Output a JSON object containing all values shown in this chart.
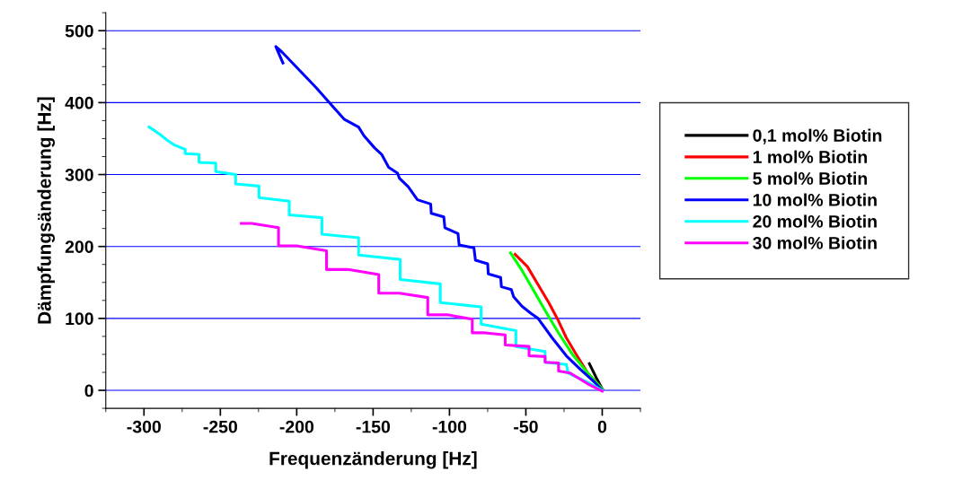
{
  "chart_data": {
    "type": "line",
    "xlabel": "Frequenzänderung [Hz]",
    "ylabel": "Dämpfungsänderung [Hz]",
    "xlim": [
      -325,
      25
    ],
    "xticks": [
      -300,
      -250,
      -200,
      -150,
      -100,
      -50,
      0
    ],
    "ylim": [
      -25,
      525
    ],
    "yticks": [
      0,
      100,
      200,
      300,
      400,
      500
    ],
    "grid": "y",
    "legend": "right",
    "marker": "none",
    "line_style": "solid",
    "series": [
      {
        "name": "0,1 mol% Biotin",
        "color": "#000000",
        "x": [
          -8.4,
          -4,
          0
        ],
        "values": [
          37,
          18,
          2
        ]
      },
      {
        "name": "1 mol% Biotin",
        "color": "#ff0000",
        "x": [
          -57,
          -49,
          -42,
          -35,
          -29,
          -23.5,
          -16.5,
          -9.5,
          0
        ],
        "values": [
          189,
          172,
          147,
          122,
          98,
          73,
          48,
          24,
          2
        ]
      },
      {
        "name": "5 mol% Biotin",
        "color": "#00ff00",
        "x": [
          -60,
          -52.6,
          -44.4,
          -36.3,
          -28.1,
          -18.8,
          -9.5,
          0
        ],
        "values": [
          191,
          167,
          137,
          107,
          78,
          48,
          24,
          2
        ]
      },
      {
        "name": "10 mol% Biotin",
        "color": "#0000ff",
        "x": [
          -209,
          -213.7,
          -209.5,
          -187.4,
          -177,
          -169,
          -159.5,
          -156,
          -149,
          -144.4,
          -139.8,
          -134,
          -132.8,
          -127,
          -121,
          -112.3,
          -111.9,
          -103.7,
          -103,
          -94.4,
          -93.7,
          -84,
          -83,
          -75,
          -74.6,
          -66.5,
          -66,
          -59.5,
          -58,
          -52.6,
          -46.7,
          -42,
          -32.8,
          -23.5,
          -14.2,
          -4.9,
          0
        ],
        "values": [
          455,
          478,
          470,
          421,
          396,
          377,
          366,
          354,
          337,
          328,
          310,
          302,
          295,
          283,
          265,
          259,
          246,
          241,
          226,
          218,
          202,
          198,
          181,
          176,
          162,
          157,
          144,
          140,
          130,
          117,
          107,
          100,
          73,
          48,
          29,
          11,
          0
        ]
      },
      {
        "name": "20 mol% Biotin",
        "color": "#00ffff",
        "x": [
          -296.7,
          -293,
          -289,
          -285,
          -280,
          -273,
          -273,
          -264,
          -264,
          -253,
          -253,
          -240,
          -240,
          -224.7,
          -224.7,
          -204.9,
          -204.9,
          -183.5,
          -183.5,
          -159.5,
          -159.5,
          -132.3,
          -132.3,
          -106,
          -106,
          -79.3,
          -79.3,
          -56.5,
          -56.5,
          -37.4,
          -37.4,
          -23.5,
          -22.3,
          -9.5,
          0
        ],
        "values": [
          366,
          361,
          355,
          348,
          341,
          335,
          329,
          328,
          317,
          316,
          304,
          300,
          287,
          284,
          268,
          263,
          244,
          240,
          217,
          212,
          188,
          182,
          154,
          148,
          122,
          116,
          92,
          83,
          61,
          54,
          39,
          36,
          24,
          11,
          0
        ]
      },
      {
        "name": "30 mol% Biotin",
        "color": "#ff00ff",
        "x": [
          -236.3,
          -229.3,
          -211.9,
          -211.9,
          -200,
          -180.5,
          -180.5,
          -166.5,
          -146.3,
          -146.3,
          -132.8,
          -114.2,
          -114.2,
          -101.4,
          -85.1,
          -85.1,
          -77,
          -63.5,
          -63.5,
          -47.9,
          -47.9,
          -37.4,
          -37.4,
          -28.6,
          -28.6,
          -21,
          -9.5,
          0
        ],
        "values": [
          232,
          232,
          226,
          201,
          201,
          194,
          168,
          168,
          161,
          135,
          135,
          129,
          105,
          105,
          99,
          80,
          80,
          77,
          63,
          61,
          48,
          47,
          39,
          38,
          27,
          24,
          9,
          -1
        ]
      }
    ]
  }
}
